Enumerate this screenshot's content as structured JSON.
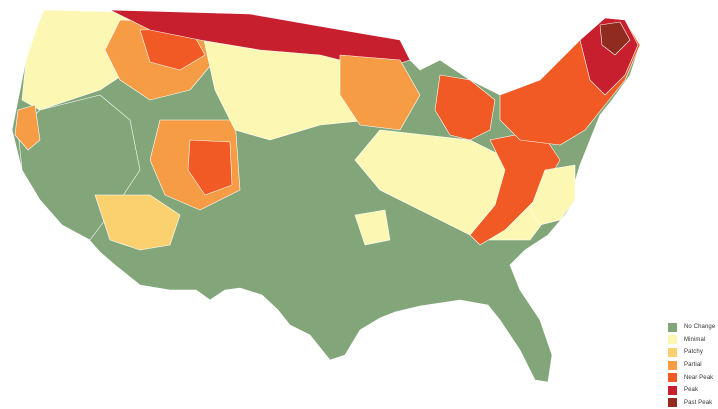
{
  "map": {
    "legend": [
      {
        "key": "no_change",
        "label": "No Change",
        "color": "#82a67a"
      },
      {
        "key": "minimal",
        "label": "Minimal",
        "color": "#fcf7b3"
      },
      {
        "key": "patchy",
        "label": "Patchy",
        "color": "#fbd06f"
      },
      {
        "key": "partial",
        "label": "Partial",
        "color": "#f59c45"
      },
      {
        "key": "near_peak",
        "label": "Near Peak",
        "color": "#f15a24"
      },
      {
        "key": "peak",
        "label": "Peak",
        "color": "#c81f2e"
      },
      {
        "key": "past_peak",
        "label": "Past Peak",
        "color": "#8f2b1f"
      }
    ],
    "region_stages": {
      "pacific_northwest": "minimal",
      "california_coast": "no_change",
      "great_basin": "no_change",
      "southwest_desert": "patchy",
      "northern_rockies": "near_peak",
      "northern_plains": "minimal",
      "upper_midwest_north": "peak",
      "central_plains": "no_change",
      "texas_south": "no_change",
      "michigan": "near_peak",
      "ohio_valley": "minimal",
      "appalachians": "near_peak",
      "southeast": "no_change",
      "mid_atlantic": "minimal",
      "new_england": "peak",
      "maine_north": "past_peak"
    }
  }
}
